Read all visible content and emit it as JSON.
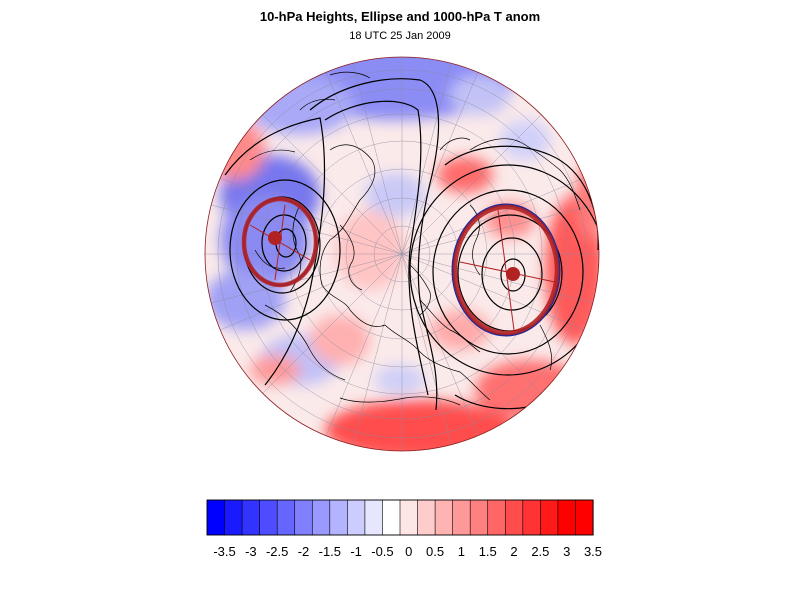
{
  "title": "10-hPa Heights, Ellipse and 1000-hPa T anom",
  "subtitle": "18 UTC 25 Jan 2009",
  "colorbar": {
    "labels": [
      "-3.5",
      "-3",
      "-2.5",
      "-2",
      "-1.5",
      "-1",
      "-0.5",
      "0",
      "0.5",
      "1",
      "1.5",
      "2",
      "2.5",
      "3",
      "3.5"
    ],
    "colors": [
      "#0000ff",
      "#1a1aff",
      "#3333ff",
      "#4d4dff",
      "#6666ff",
      "#8080ff",
      "#9999ff",
      "#b3b3ff",
      "#ccccff",
      "#e6e6ff",
      "#ffffff",
      "#ffe6e6",
      "#ffcccc",
      "#ffb3b3",
      "#ff9999",
      "#ff8080",
      "#ff6666",
      "#ff4d4d",
      "#ff3333",
      "#ff1a1a",
      "#ff0000",
      "#ff0000"
    ]
  },
  "map": {
    "projection": "orthographic, north polar",
    "features": [
      "coastlines",
      "lat-lon grid",
      "10-hPa height contours",
      "1000-hPa temperature anomaly shading",
      "vortex ellipses",
      "vortex centroids"
    ]
  },
  "colors": {
    "ellipse": "#b22222",
    "ellipse_alt": "#1e2a9c",
    "contour": "#000000",
    "warm": "#ff4d4d",
    "cold": "#6666ff"
  }
}
